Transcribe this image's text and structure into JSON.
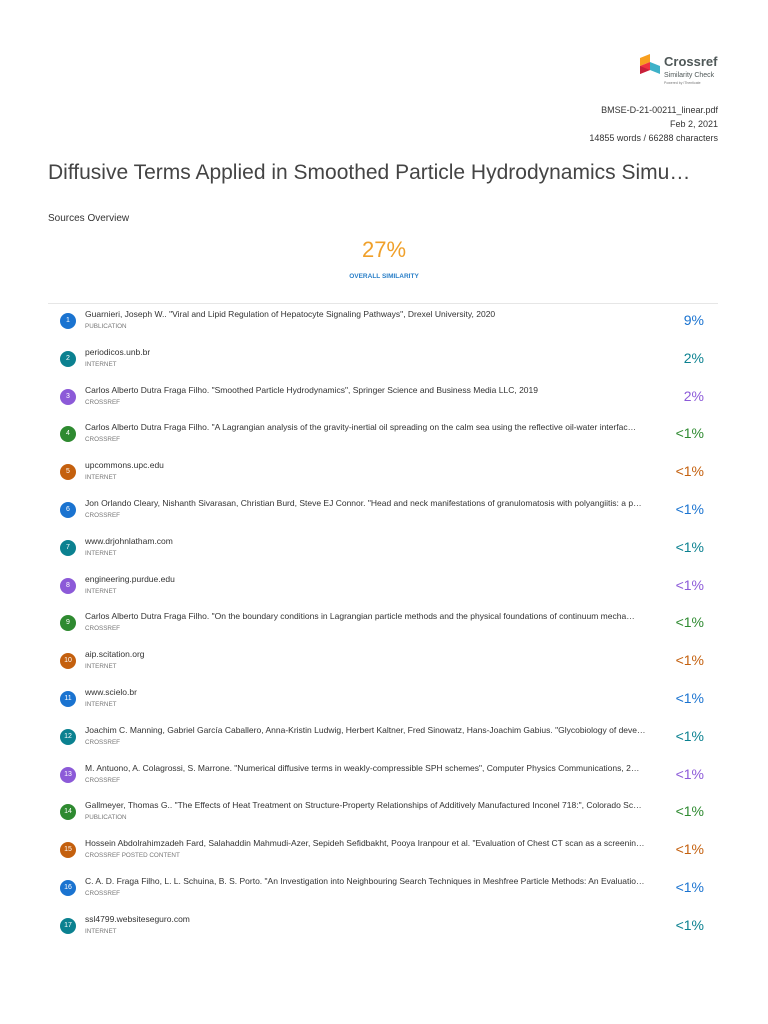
{
  "header": {
    "logo": {
      "name": "Crossref",
      "product": "Similarity Check",
      "tagline": "Powered by iThenticate"
    },
    "meta": {
      "file": "BMSE-D-21-00211_linear.pdf",
      "date": "Feb 2, 2021",
      "counts": "14855 words / 66288 characters"
    }
  },
  "title": "Diffusive Terms Applied in Smoothed Particle Hydrodynamics Simu…",
  "overview": {
    "heading": "Sources Overview",
    "similarity": "27%",
    "similarity_label": "OVERALL SIMILARITY"
  },
  "sources": [
    {
      "number": "1",
      "title": "Guarnieri, Joseph W.. \"Viral and Lipid Regulation of Hepatocyte Signaling Pathways\", Drexel University, 2020",
      "type": "PUBLICATION",
      "percent": "9%",
      "color": "#1a73d0"
    },
    {
      "number": "2",
      "title": "periodicos.unb.br",
      "type": "INTERNET",
      "percent": "2%",
      "color": "#0b8190"
    },
    {
      "number": "3",
      "title": "Carlos Alberto Dutra Fraga Filho. \"Smoothed Particle Hydrodynamics\", Springer Science and Business Media LLC, 2019",
      "type": "CROSSREF",
      "percent": "2%",
      "color": "#8c5ad8"
    },
    {
      "number": "4",
      "title": "Carlos Alberto Dutra Fraga Filho. \"A Lagrangian analysis of the gravity-inertial oil spreading on the calm sea using the reflective oil-water interfac…",
      "type": "CROSSREF",
      "percent": "<1%",
      "color": "#2e8a30"
    },
    {
      "number": "5",
      "title": "upcommons.upc.edu",
      "type": "INTERNET",
      "percent": "<1%",
      "color": "#c4600e"
    },
    {
      "number": "6",
      "title": "Jon Orlando Cleary, Nishanth Sivarasan, Christian Burd, Steve EJ Connor. \"Head and neck manifestations of granulomatosis with polyangiitis: a p…",
      "type": "CROSSREF",
      "percent": "<1%",
      "color": "#1a73d0"
    },
    {
      "number": "7",
      "title": "www.drjohnlatham.com",
      "type": "INTERNET",
      "percent": "<1%",
      "color": "#0b8190"
    },
    {
      "number": "8",
      "title": "engineering.purdue.edu",
      "type": "INTERNET",
      "percent": "<1%",
      "color": "#8c5ad8"
    },
    {
      "number": "9",
      "title": "Carlos Alberto Dutra Fraga Filho. \"On the boundary conditions in Lagrangian particle methods and the physical foundations of continuum mecha…",
      "type": "CROSSREF",
      "percent": "<1%",
      "color": "#2e8a30"
    },
    {
      "number": "10",
      "title": "aip.scitation.org",
      "type": "INTERNET",
      "percent": "<1%",
      "color": "#c4600e"
    },
    {
      "number": "11",
      "title": "www.scielo.br",
      "type": "INTERNET",
      "percent": "<1%",
      "color": "#1a73d0"
    },
    {
      "number": "12",
      "title": "Joachim C. Manning, Gabriel García Caballero, Anna-Kristin Ludwig, Herbert Kaltner, Fred Sinowatz, Hans-Joachim Gabius. \"Glycobiology of deve…",
      "type": "CROSSREF",
      "percent": "<1%",
      "color": "#0b8190"
    },
    {
      "number": "13",
      "title": "M. Antuono, A. Colagrossi, S. Marrone. \"Numerical diffusive terms in weakly-compressible SPH schemes\", Computer Physics Communications, 2…",
      "type": "CROSSREF",
      "percent": "<1%",
      "color": "#8c5ad8"
    },
    {
      "number": "14",
      "title": "Gallmeyer, Thomas G.. \"The Effects of Heat Treatment on Structure-Property Relationships of Additively Manufactured Inconel 718:\", Colorado Sc…",
      "type": "PUBLICATION",
      "percent": "<1%",
      "color": "#2e8a30"
    },
    {
      "number": "15",
      "title": "Hossein Abdolrahimzadeh Fard, Salahaddin Mahmudi-Azer, Sepideh Sefidbakht, Pooya Iranpour et al. \"Evaluation of Chest CT scan as a screenin…",
      "type": "CROSSREF POSTED CONTENT",
      "percent": "<1%",
      "color": "#c4600e"
    },
    {
      "number": "16",
      "title": "C. A. D. Fraga Filho, L. L. Schuina, B. S. Porto. \"An Investigation into Neighbouring Search Techniques in Meshfree Particle Methods: An Evaluatio…",
      "type": "CROSSREF",
      "percent": "<1%",
      "color": "#1a73d0"
    },
    {
      "number": "17",
      "title": "ssl4799.websiteseguro.com",
      "type": "INTERNET",
      "percent": "<1%",
      "color": "#0b8190"
    }
  ]
}
